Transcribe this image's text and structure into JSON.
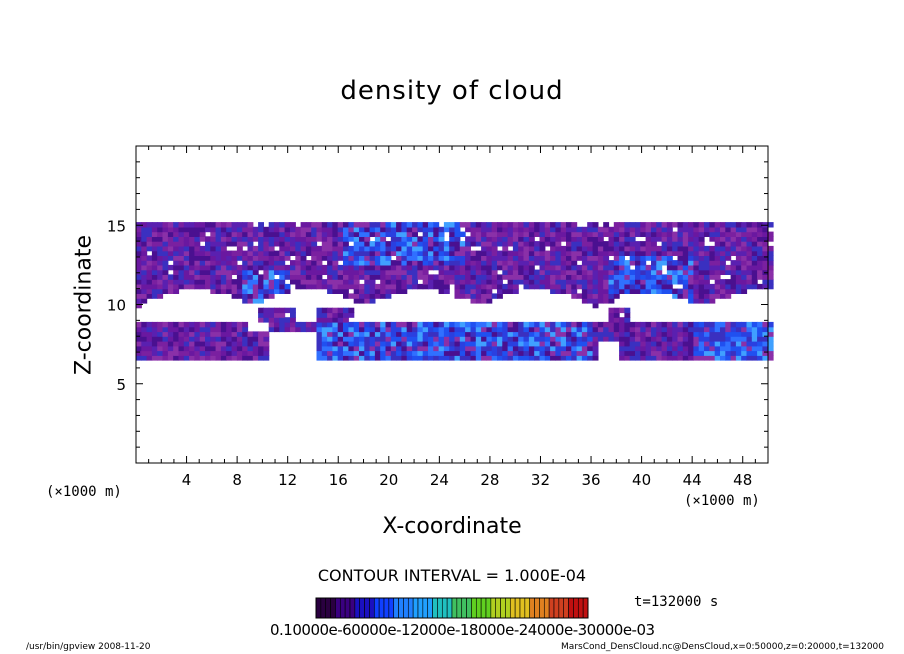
{
  "chart_data": {
    "type": "heatmap",
    "title": "density of cloud",
    "xlabel": "X-coordinate",
    "ylabel": "Z-coordinate",
    "x_unit": "(×1000 m)",
    "y_unit": "(×1000 m)",
    "xlim": [
      0,
      50
    ],
    "ylim": [
      0,
      20
    ],
    "xticks": [
      "4",
      "8",
      "12",
      "16",
      "20",
      "24",
      "28",
      "32",
      "36",
      "40",
      "44",
      "48"
    ],
    "yticks": [
      "5",
      "10",
      "15"
    ],
    "grid": false,
    "cloud_layers": [
      {
        "name_visible": false,
        "z_bottom": 9.8,
        "z_top": 15.0,
        "x_start": 0,
        "x_end": 50
      },
      {
        "name_visible": false,
        "z_bottom": 6.3,
        "z_top": 8.6,
        "x_start": 0,
        "x_end": 50
      }
    ],
    "colorbar": {
      "tick_text": "0.10000e-60000e-12000e-18000e-24000e-30000e-03",
      "min": 0.0001,
      "max": 0.0003,
      "colors": [
        "#2a0040",
        "#3a0080",
        "#1a10c0",
        "#1040ff",
        "#2080ff",
        "#20a0ff",
        "#20c0c0",
        "#40c060",
        "#60d020",
        "#b0d020",
        "#e0c020",
        "#e08020",
        "#d04020",
        "#c01010"
      ]
    },
    "contour_interval": "CONTOUR INTERVAL = 1.000E-04",
    "time": "t=132000  s"
  },
  "footer": {
    "left": "/usr/bin/gpview   2008-11-20",
    "right": "MarsCond_DensCloud.nc@DensCloud,x=0:50000,z=0:20000,t=132000"
  },
  "colors": {
    "cloud_base": "#7a20a0",
    "cloud_dark": "#4a1090",
    "cloud_blue": "#2040e0",
    "cloud_light": "#40a0ff"
  }
}
